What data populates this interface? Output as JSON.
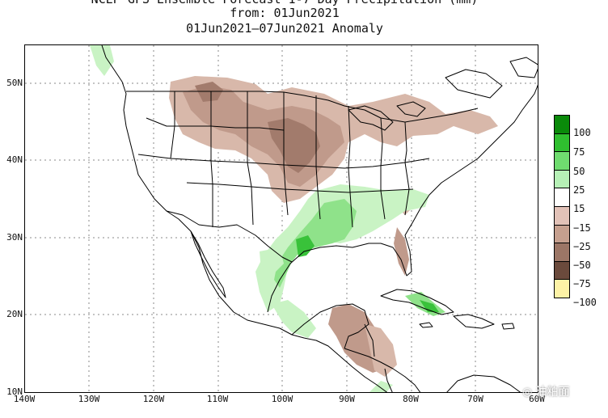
{
  "title": {
    "line1": "NCEP GFS Ensemble Forecast 1-7 Day Precipitation (mm)",
    "line2": "from: 01Jun2021",
    "line3": "01Jun2021–07Jun2021 Anomaly"
  },
  "lat_labels": [
    "50N",
    "40N",
    "30N",
    "20N",
    "10N"
  ],
  "lon_labels": [
    "140W",
    "130W",
    "120W",
    "110W",
    "100W",
    "90W",
    "80W",
    "70W",
    "60W"
  ],
  "legend": {
    "labels": [
      "100",
      "75",
      "50",
      "25",
      "15",
      "−15",
      "−25",
      "−50",
      "−75",
      "−100"
    ],
    "colors": [
      "#0a8a0a",
      "#2fbf2f",
      "#6fdc6f",
      "#b6f0b6",
      "#ffffff",
      "#e2c2b8",
      "#c6a08f",
      "#9c7666",
      "#6b4a3c",
      "#fdf2a6"
    ]
  },
  "watermark": "油粕面",
  "colors": {
    "dry_light": "#d8b8aa",
    "dry_mid": "#bf998a",
    "dry_dark": "#a27b6c",
    "wet_light": "#c9f3c4",
    "wet_mid": "#8fe28a",
    "wet_dark": "#39c23a"
  }
}
